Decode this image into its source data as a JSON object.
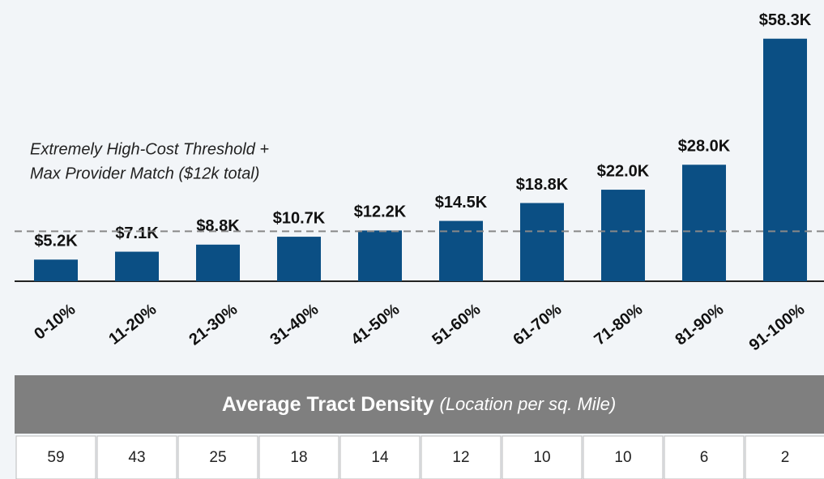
{
  "chart_data": {
    "type": "bar",
    "categories": [
      "0-10%",
      "11-20%",
      "21-30%",
      "31-40%",
      "41-50%",
      "51-60%",
      "61-70%",
      "71-80%",
      "81-90%",
      "91-100%"
    ],
    "values": [
      5.2,
      7.1,
      8.8,
      10.7,
      12.2,
      14.5,
      18.8,
      22.0,
      28.0,
      58.3
    ],
    "value_labels": [
      "$5.2K",
      "$7.1K",
      "$8.8K",
      "$10.7K",
      "$12.2K",
      "$14.5K",
      "$18.8K",
      "$22.0K",
      "$28.0K",
      "$58.3K"
    ],
    "color": "#0b4f84",
    "ylim": [
      0,
      60
    ],
    "threshold": {
      "value": 12,
      "label": [
        "Extremely High-Cost Threshold +",
        "Max Provider Match ($12k total)"
      ]
    }
  },
  "table": {
    "title": "Average Tract Density",
    "subtitle": "(Location per sq. Mile)",
    "values": [
      59,
      43,
      25,
      18,
      14,
      12,
      10,
      10,
      6,
      2
    ]
  }
}
